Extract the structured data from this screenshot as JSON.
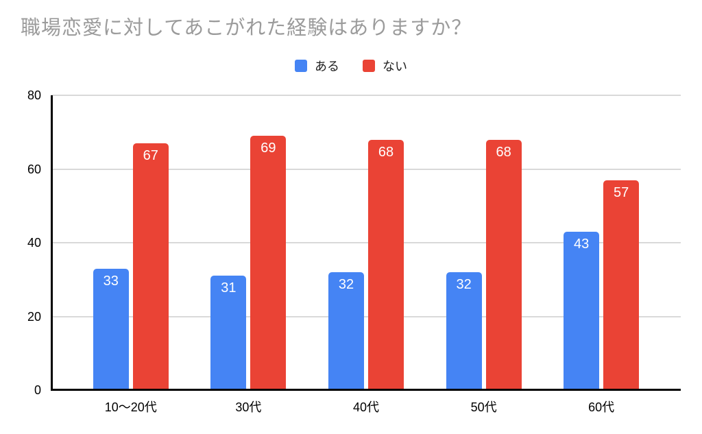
{
  "title": "職場恋愛に対してあこがれた経験はありますか？",
  "colors": {
    "series_aru": "#4584F4",
    "series_nai": "#EA4335",
    "title_text": "#9B9B9B",
    "gridline": "#D9D9D9",
    "axis": "#000000",
    "value_label_text": "#FFFFFF"
  },
  "chart_data": {
    "type": "bar",
    "title": "職場恋愛に対してあこがれた経験はありますか？",
    "categories": [
      "10〜20代",
      "30代",
      "40代",
      "50代",
      "60代"
    ],
    "series": [
      {
        "name": "ある",
        "color": "#4584F4",
        "values": [
          33,
          31,
          32,
          32,
          43
        ]
      },
      {
        "name": "ない",
        "color": "#EA4335",
        "values": [
          67,
          69,
          68,
          68,
          57
        ]
      }
    ],
    "xlabel": "",
    "ylabel": "",
    "ylim": [
      0,
      80
    ],
    "yticks": [
      0,
      20,
      40,
      60,
      80
    ],
    "grid": true,
    "legend_position": "top",
    "value_labels": "inside-top"
  }
}
